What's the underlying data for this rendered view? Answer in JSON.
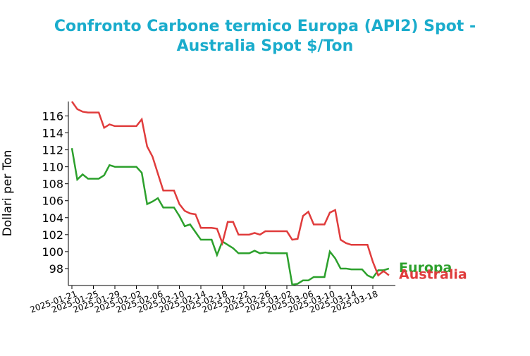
{
  "chart_data": {
    "type": "line",
    "title": "Confronto Carbone termico Europa (API2) Spot - Australia Spot $/Ton",
    "y_label": "Dollari per Ton",
    "x": [
      "2025-01-21",
      "2025-01-22",
      "2025-01-23",
      "2025-01-24",
      "2025-01-25",
      "2025-01-26",
      "2025-01-27",
      "2025-01-28",
      "2025-01-29",
      "2025-01-30",
      "2025-01-31",
      "2025-02-01",
      "2025-02-02",
      "2025-02-03",
      "2025-02-04",
      "2025-02-05",
      "2025-02-06",
      "2025-02-07",
      "2025-02-08",
      "2025-02-09",
      "2025-02-10",
      "2025-02-11",
      "2025-02-12",
      "2025-02-13",
      "2025-02-14",
      "2025-02-15",
      "2025-02-16",
      "2025-02-17",
      "2025-02-18",
      "2025-02-19",
      "2025-02-20",
      "2025-02-21",
      "2025-02-22",
      "2025-02-23",
      "2025-02-24",
      "2025-02-25",
      "2025-02-26",
      "2025-02-27",
      "2025-02-28",
      "2025-03-01",
      "2025-03-02",
      "2025-03-03",
      "2025-03-04",
      "2025-03-05",
      "2025-03-06",
      "2025-03-07",
      "2025-03-08",
      "2025-03-09",
      "2025-03-10",
      "2025-03-11",
      "2025-03-12",
      "2025-03-13",
      "2025-03-14",
      "2025-03-15",
      "2025-03-16",
      "2025-03-17",
      "2025-03-18",
      "2025-03-19",
      "2025-03-20",
      "2025-03-21"
    ],
    "series": [
      {
        "name": "Europa",
        "color": "#2ca02c",
        "values": [
          112.2,
          108.5,
          109.1,
          108.6,
          108.6,
          108.6,
          109.0,
          110.2,
          110.0,
          110.0,
          110.0,
          110.0,
          110.0,
          109.3,
          105.6,
          105.9,
          106.3,
          105.2,
          105.2,
          105.2,
          104.2,
          103.0,
          103.2,
          102.3,
          101.4,
          101.4,
          101.4,
          99.6,
          101.2,
          100.8,
          100.4,
          99.8,
          99.8,
          99.8,
          100.1,
          99.8,
          99.9,
          99.8,
          99.8,
          99.8,
          99.8,
          96.1,
          96.2,
          96.6,
          96.6,
          97.0,
          97.0,
          97.0,
          100.0,
          99.2,
          98.0,
          98.0,
          97.9,
          97.9,
          97.9,
          97.2,
          96.9,
          97.8,
          97.8,
          98.0
        ]
      },
      {
        "name": "Australia",
        "color": "#e03c3c",
        "values": [
          117.7,
          116.8,
          116.5,
          116.4,
          116.4,
          116.4,
          114.6,
          115.0,
          114.8,
          114.8,
          114.8,
          114.8,
          114.8,
          115.6,
          112.4,
          111.2,
          109.2,
          107.2,
          107.2,
          107.2,
          105.6,
          104.8,
          104.5,
          104.4,
          102.8,
          102.8,
          102.8,
          102.7,
          101.0,
          103.5,
          103.5,
          102.0,
          102.0,
          102.0,
          102.2,
          102.0,
          102.4,
          102.4,
          102.4,
          102.4,
          102.4,
          101.4,
          101.5,
          104.2,
          104.7,
          103.2,
          103.2,
          103.2,
          104.6,
          104.9,
          101.4,
          101.0,
          100.8,
          100.8,
          100.8,
          100.8,
          98.8,
          97.2,
          97.7,
          97.2
        ]
      }
    ],
    "xlim": [
      "2025-01-21",
      "2025-03-22"
    ],
    "xticks": [
      "2025-01-21",
      "2025-01-25",
      "2025-01-29",
      "2025-02-02",
      "2025-02-06",
      "2025-02-10",
      "2025-02-14",
      "2025-02-18",
      "2025-02-22",
      "2025-02-26",
      "2025-03-02",
      "2025-03-06",
      "2025-03-10",
      "2025-03-14",
      "2025-03-18"
    ],
    "ylim": [
      96,
      117.7
    ],
    "yticks": [
      98,
      100,
      102,
      104,
      106,
      108,
      110,
      112,
      114,
      116
    ],
    "grid": false
  }
}
